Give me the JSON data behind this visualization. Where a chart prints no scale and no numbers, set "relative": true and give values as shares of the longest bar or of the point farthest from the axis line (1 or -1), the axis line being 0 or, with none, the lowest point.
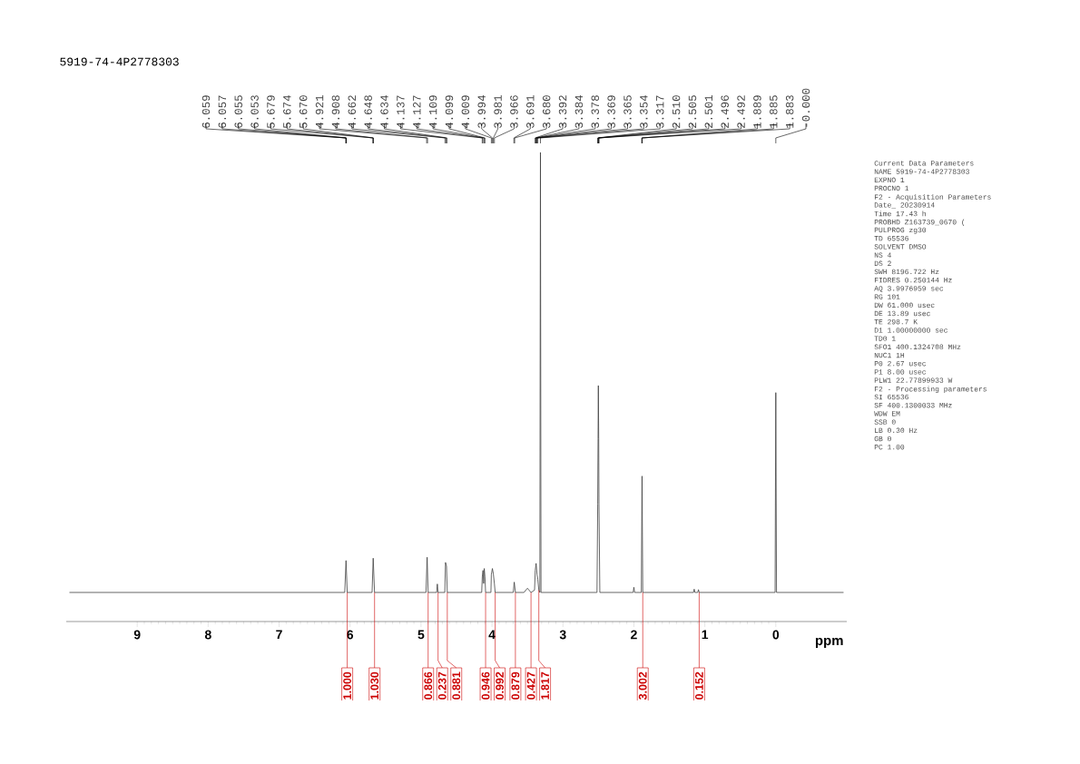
{
  "chart_data": {
    "type": "line",
    "title": "5919-74-4P2778303",
    "xlabel": "ppm",
    "relative": true,
    "xlim": [
      10,
      -1
    ],
    "xticks": [
      9,
      8,
      7,
      6,
      5,
      4,
      3,
      2,
      1,
      0
    ],
    "grid": false,
    "legend": false,
    "marker": "none",
    "line_style": "solid",
    "series": [
      {
        "color": "#404040",
        "x": [
          9.95,
          6.075,
          6.057,
          6.04,
          5.69,
          5.674,
          5.655,
          4.93,
          4.914,
          4.9,
          4.78,
          4.77,
          4.76,
          4.665,
          4.655,
          4.641,
          4.63,
          4.145,
          4.137,
          4.127,
          4.118,
          4.109,
          4.099,
          4.09,
          4.015,
          4.009,
          3.994,
          3.981,
          3.966,
          3.955,
          3.7,
          3.686,
          3.67,
          3.55,
          3.5,
          3.45,
          3.4,
          3.39,
          3.378,
          3.365,
          3.354,
          3.34,
          3.325,
          3.317,
          3.309,
          2.52,
          2.51,
          2.505,
          2.501,
          2.496,
          2.492,
          2.48,
          2.01,
          2.0,
          1.99,
          1.895,
          1.885,
          1.875,
          1.16,
          1.15,
          1.14,
          1.1,
          1.09,
          1.08,
          0.01,
          0,
          -0.01,
          -0.95
        ],
        "values": [
          0.062,
          0.062,
          0.13,
          0.062,
          0.062,
          0.135,
          0.062,
          0.062,
          0.137,
          0.062,
          0.062,
          0.08,
          0.062,
          0.062,
          0.126,
          0.118,
          0.062,
          0.062,
          0.095,
          0.109,
          0.081,
          0.113,
          0.095,
          0.062,
          0.062,
          0.1,
          0.113,
          0.102,
          0.081,
          0.062,
          0.062,
          0.084,
          0.062,
          0.062,
          0.071,
          0.062,
          0.067,
          0.109,
          0.124,
          0.1,
          0.09,
          0.067,
          0.062,
          1,
          0.062,
          0.062,
          0.25,
          0.39,
          0.503,
          0.39,
          0.25,
          0.062,
          0.062,
          0.073,
          0.062,
          0.062,
          0.31,
          0.062,
          0.062,
          0.069,
          0.062,
          0.062,
          0.068,
          0.062,
          0.062,
          0.488,
          0.062,
          0.062
        ]
      }
    ],
    "annotations": [
      {
        "text": "6.059",
        "x": 6.059
      },
      {
        "text": "6.057",
        "x": 6.057
      },
      {
        "text": "6.055",
        "x": 6.055
      },
      {
        "text": "6.053",
        "x": 6.053
      },
      {
        "text": "5.679",
        "x": 5.679
      },
      {
        "text": "5.674",
        "x": 5.674
      },
      {
        "text": "5.670",
        "x": 5.67
      },
      {
        "text": "4.921",
        "x": 4.921
      },
      {
        "text": "4.908",
        "x": 4.908
      },
      {
        "text": "4.662",
        "x": 4.662
      },
      {
        "text": "4.648",
        "x": 4.648
      },
      {
        "text": "4.634",
        "x": 4.634
      },
      {
        "text": "4.137",
        "x": 4.137
      },
      {
        "text": "4.127",
        "x": 4.127
      },
      {
        "text": "4.109",
        "x": 4.109
      },
      {
        "text": "4.099",
        "x": 4.099
      },
      {
        "text": "4.009",
        "x": 4.009
      },
      {
        "text": "3.994",
        "x": 3.994
      },
      {
        "text": "3.981",
        "x": 3.981
      },
      {
        "text": "3.966",
        "x": 3.966
      },
      {
        "text": "3.691",
        "x": 3.691
      },
      {
        "text": "3.680",
        "x": 3.68
      },
      {
        "text": "3.392",
        "x": 3.392
      },
      {
        "text": "3.384",
        "x": 3.384
      },
      {
        "text": "3.378",
        "x": 3.378
      },
      {
        "text": "3.369",
        "x": 3.369
      },
      {
        "text": "3.365",
        "x": 3.365
      },
      {
        "text": "3.354",
        "x": 3.354
      },
      {
        "text": "3.317",
        "x": 3.317
      },
      {
        "text": "2.510",
        "x": 2.51
      },
      {
        "text": "2.505",
        "x": 2.505
      },
      {
        "text": "2.501",
        "x": 2.501
      },
      {
        "text": "2.496",
        "x": 2.496
      },
      {
        "text": "2.492",
        "x": 2.492
      },
      {
        "text": "1.889",
        "x": 1.889
      },
      {
        "text": "1.885",
        "x": 1.885
      },
      {
        "text": "1.883",
        "x": 1.883
      },
      {
        "text": "-0.000",
        "x": 0
      },
      {
        "text": "1.000",
        "x": 6.04,
        "y": 0.062
      },
      {
        "text": "1.030",
        "x": 5.655,
        "y": 0.062
      },
      {
        "text": "0.866",
        "x": 4.9,
        "y": 0.062
      },
      {
        "text": "0.237",
        "x": 4.76,
        "y": 0.062
      },
      {
        "text": "0.881",
        "x": 4.63,
        "y": 0.062
      },
      {
        "text": "0.946",
        "x": 4.09,
        "y": 0.062
      },
      {
        "text": "0.992",
        "x": 3.955,
        "y": 0.062
      },
      {
        "text": "0.879",
        "x": 3.67,
        "y": 0.062
      },
      {
        "text": "0.427",
        "x": 3.45,
        "y": 0.062
      },
      {
        "text": "1.817",
        "x": 3.34,
        "y": 0.067
      },
      {
        "text": "3.002",
        "x": 1.875,
        "y": 0.062
      },
      {
        "text": "0.152",
        "x": 1.08,
        "y": 0.062
      },
      "Current Data Parameters",
      "NAME 5919-74-4P2778303",
      "EXPNO 1",
      "PROCNO 1",
      "F2 - Acquisition Parameters",
      "Date_ 20230914",
      "Time 17.43 h",
      "PROBHD Z163739_0670 (",
      "PULPROG zg30",
      "TD 65536",
      "SOLVENT DMSO",
      "NS 4",
      "DS 2",
      "SWH 8196.722 Hz",
      "FIDRES 0.250144 Hz",
      "AQ 3.9976959 sec",
      "RG 101",
      "DW 61.000 usec",
      "DE 13.89 usec",
      "TE 298.7 K",
      "D1 1.00000000 sec",
      "TD0 1",
      "SFO1 400.1324708 MHz",
      "NUC1 1H",
      "P0 2.67 usec",
      "P1 8.00 usec",
      "PLW1 22.77899933 W",
      "F2 - Processing parameters",
      "SI 65536",
      "SF 400.1300033 MHz",
      "WDW EM",
      "SSB 0",
      "LB 0.30 Hz",
      "GB 0",
      "PC 1.00"
    ]
  }
}
